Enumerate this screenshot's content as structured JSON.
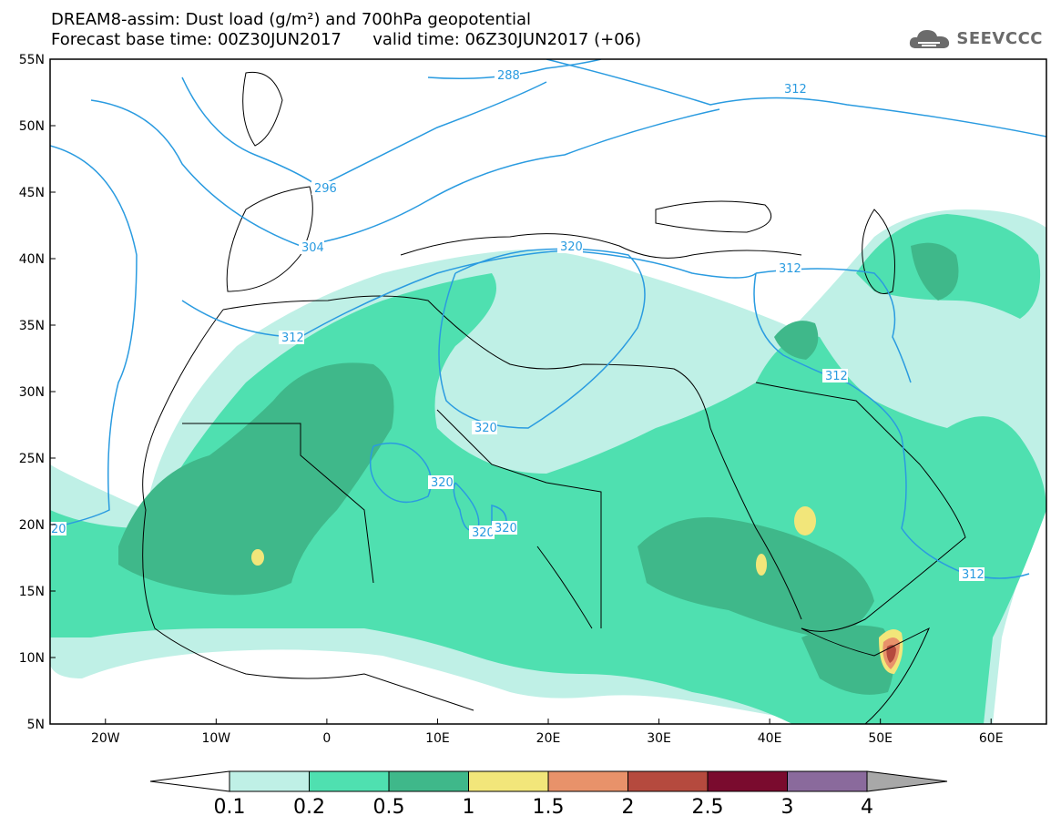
{
  "header": {
    "title_line1": "DREAM8-assim: Dust load (g/m²) and 700hPa geopotential",
    "title_line2": "Forecast base time: 00Z30JUN2017      valid time: 06Z30JUN2017 (+06)"
  },
  "logo": {
    "text": "SEEVCCC",
    "icon": "cloud-icon",
    "color": "#6b6b6b"
  },
  "map": {
    "lon_range": [
      -25,
      65
    ],
    "lat_range": [
      5,
      55
    ],
    "lat_labels": [
      "55N",
      "50N",
      "45N",
      "40N",
      "35N",
      "30N",
      "25N",
      "20N",
      "15N",
      "10N",
      "5N"
    ],
    "lon_labels": [
      "20W",
      "10W",
      "0",
      "10E",
      "20E",
      "30E",
      "40E",
      "50E",
      "60E"
    ],
    "contour_color": "#2a9be0",
    "contour_labels": [
      "288",
      "312",
      "296",
      "304",
      "320",
      "312",
      "312",
      "320",
      "320",
      "320",
      "320",
      "312",
      "312",
      "20"
    ]
  },
  "colorbar": {
    "levels": [
      "0.1",
      "0.2",
      "0.5",
      "1",
      "1.5",
      "2",
      "2.5",
      "3",
      "4"
    ],
    "colors": [
      "#ffffff",
      "#bff0e6",
      "#4fe0b0",
      "#3fb88a",
      "#f2e67a",
      "#e8926a",
      "#b54a3e",
      "#7a0b2e",
      "#8a6a9c",
      "#a8a8a8"
    ]
  }
}
